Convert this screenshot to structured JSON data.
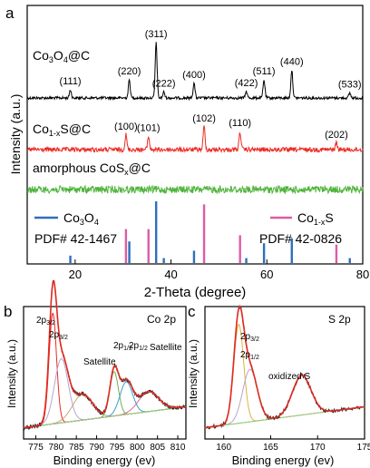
{
  "chart_data": [
    {
      "panel": "a",
      "type": "line",
      "xlabel": "2-Theta (degree)",
      "ylabel": "Intensity (a.u.)",
      "xlim": [
        10,
        80
      ],
      "xticks": [
        20,
        40,
        60,
        80
      ],
      "series": [
        {
          "name": "Co3O4@C",
          "color": "#000000",
          "peaks": [
            {
              "x": 19.0,
              "h": 0.25,
              "label": "(111)"
            },
            {
              "x": 31.3,
              "h": 0.55,
              "label": "(220)"
            },
            {
              "x": 36.9,
              "h": 1.7,
              "label": "(311)"
            },
            {
              "x": 38.5,
              "h": 0.18,
              "label": "(222)"
            },
            {
              "x": 44.8,
              "h": 0.45,
              "label": "(400)"
            },
            {
              "x": 55.7,
              "h": 0.2,
              "label": "(422)"
            },
            {
              "x": 59.4,
              "h": 0.55,
              "label": "(511)"
            },
            {
              "x": 65.2,
              "h": 0.85,
              "label": "(440)"
            },
            {
              "x": 77.3,
              "h": 0.15,
              "label": "(533)"
            }
          ]
        },
        {
          "name": "Co1-xS@C",
          "color": "#ec2a23",
          "peaks": [
            {
              "x": 30.6,
              "h": 0.45,
              "label": "(100)"
            },
            {
              "x": 35.3,
              "h": 0.4,
              "label": "(101)"
            },
            {
              "x": 46.9,
              "h": 0.7,
              "label": "(102)"
            },
            {
              "x": 54.4,
              "h": 0.55,
              "label": "(110)"
            },
            {
              "x": 74.5,
              "h": 0.2,
              "label": "(202)"
            }
          ]
        },
        {
          "name": "amorphous CoSx@C",
          "color": "#4fb43b",
          "peaks": []
        }
      ],
      "reference": [
        {
          "name": "Co3O4",
          "pdf": "PDF# 42-1467",
          "color": "#2e6fbd",
          "lines": [
            {
              "x": 19.0,
              "v": 0.12
            },
            {
              "x": 31.3,
              "v": 0.35
            },
            {
              "x": 36.9,
              "v": 1.0
            },
            {
              "x": 38.5,
              "v": 0.08
            },
            {
              "x": 44.8,
              "v": 0.2
            },
            {
              "x": 55.7,
              "v": 0.08
            },
            {
              "x": 59.4,
              "v": 0.32
            },
            {
              "x": 65.2,
              "v": 0.4
            },
            {
              "x": 77.3,
              "v": 0.08
            }
          ]
        },
        {
          "name": "Co1-xS",
          "pdf": "PDF# 42-0826",
          "color": "#dc5ca8",
          "lines": [
            {
              "x": 30.6,
              "v": 0.55
            },
            {
              "x": 35.3,
              "v": 0.55
            },
            {
              "x": 46.9,
              "v": 0.95
            },
            {
              "x": 54.4,
              "v": 0.45
            },
            {
              "x": 74.5,
              "v": 0.3
            }
          ]
        }
      ]
    },
    {
      "panel": "b",
      "type": "line",
      "title": "Co 2p",
      "xlabel": "Binding energy (ev)",
      "ylabel": "Intensity (a.u.)",
      "xlim": [
        772,
        812
      ],
      "xticks": [
        775,
        780,
        785,
        790,
        795,
        800,
        805,
        810
      ],
      "annotations": [
        {
          "text": "2p3/2",
          "x": 779.0
        },
        {
          "text": "2p3/2",
          "x": 781.5
        },
        {
          "text": "Satellite",
          "x": 786.5
        },
        {
          "text": "2p1/2",
          "x": 794.2
        },
        {
          "text": "2p1/2",
          "x": 797.5
        },
        {
          "text": "Satellite",
          "x": 803.5
        }
      ],
      "components": [
        {
          "center": 779.2,
          "width": 1.3,
          "height": 0.95,
          "color": "#ec2a23"
        },
        {
          "center": 781.3,
          "width": 2.4,
          "height": 0.55,
          "color": "#b7a5cc"
        },
        {
          "center": 786.5,
          "width": 3.5,
          "height": 0.22,
          "color": "#c8a77a"
        },
        {
          "center": 794.3,
          "width": 1.5,
          "height": 0.38,
          "color": "#6fb24c"
        },
        {
          "center": 797.3,
          "width": 2.2,
          "height": 0.28,
          "color": "#3aa0c8"
        },
        {
          "center": 802.8,
          "width": 3.5,
          "height": 0.17,
          "color": "#d86a9a"
        }
      ]
    },
    {
      "panel": "c",
      "type": "line",
      "title": "S 2p",
      "xlabel": "Binding energy (ev)",
      "ylabel": "Intensity (a.u.)",
      "xlim": [
        158,
        175
      ],
      "xticks": [
        160,
        165,
        170,
        175
      ],
      "annotations": [
        {
          "text": "2p3/2",
          "x": 161.6
        },
        {
          "text": "2p1/2",
          "x": 162.8
        },
        {
          "text": "oxidized S",
          "x": 168.3
        }
      ],
      "components": [
        {
          "center": 161.6,
          "width": 0.75,
          "height": 0.85,
          "color": "#e0b040"
        },
        {
          "center": 162.8,
          "width": 1.1,
          "height": 0.45,
          "color": "#b7a5cc"
        },
        {
          "center": 168.3,
          "width": 1.4,
          "height": 0.34,
          "color": "#6fb24c"
        }
      ]
    }
  ],
  "labels": {
    "panel_a": "a",
    "panel_b": "b",
    "panel_c": "c",
    "a_xlabel": "2-Theta (degree)",
    "a_ylabel": "Intensity (a.u.)",
    "b_title": "Co 2p",
    "b_xlabel": "Binding energy (ev)",
    "b_ylabel": "Intensity (a.u.)",
    "c_title": "S 2p",
    "c_xlabel": "Binding energy (ev)",
    "c_ylabel": "Intensity (a.u.)",
    "b_sat1": "Satellite",
    "b_sat2": "Satellite",
    "c_ox": "oxidized S",
    "a_pdf1": "PDF# 42-1467",
    "a_pdf2": "PDF# 42-0826"
  }
}
